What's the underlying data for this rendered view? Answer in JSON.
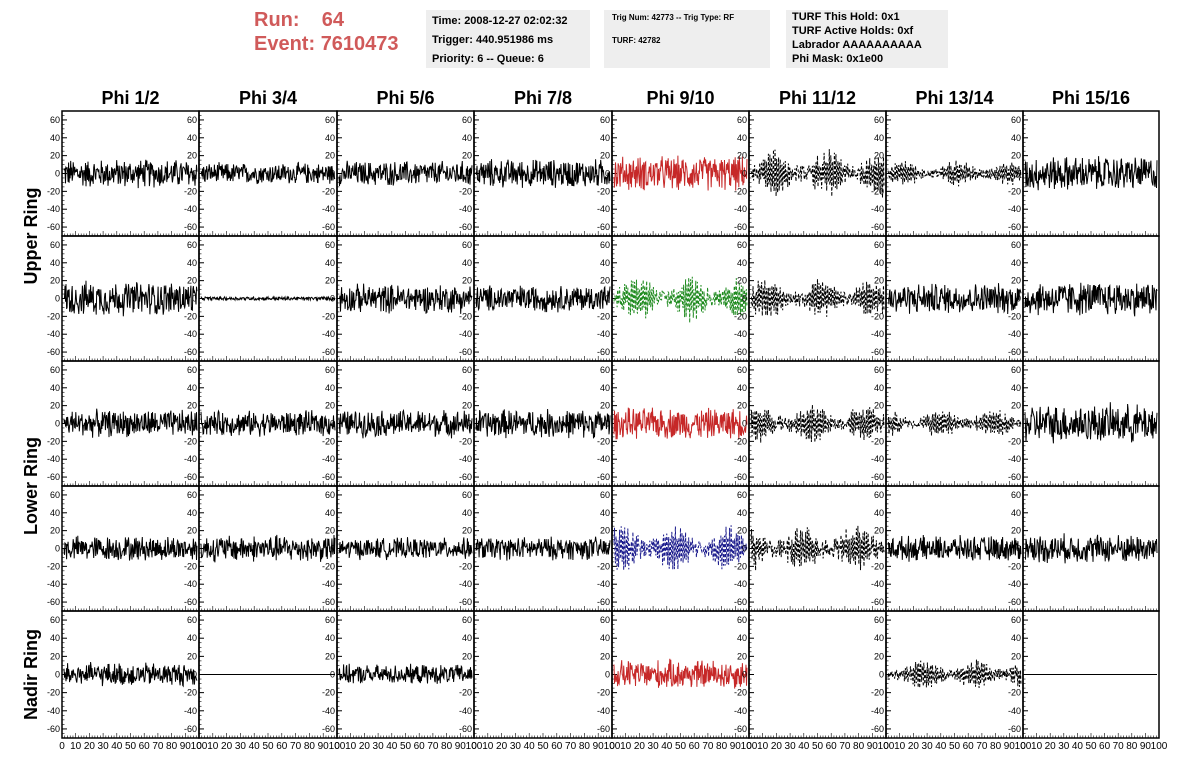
{
  "header": {
    "run_label": "Run:",
    "run_value": "64",
    "event_label": "Event:",
    "event_value": "7610473",
    "time": "Time: 2008-12-27 02:02:32",
    "trigger": "Trigger: 440.951986 ms",
    "priority": "Priority: 6 -- Queue: 6",
    "trig_num": "Trig Num: 42773 -- Trig Type: RF",
    "turf": "TURF: 42782",
    "turf_hold": "TURF This Hold: 0x1",
    "turf_active": "TURF Active Holds: 0xf",
    "labrador": "Labrador AAAAAAAAAA",
    "phi_mask": "Phi Mask: 0x1e00"
  },
  "colors": {
    "red_text": "#d05a5a",
    "trace": "#000000",
    "highlight_red": "#c62828",
    "highlight_green": "#1e8a1e",
    "highlight_blue": "#1a1a8c",
    "info_bg": "#eeeeee"
  },
  "chart_data": {
    "type": "line",
    "column_labels": [
      "Phi 1/2",
      "Phi 3/4",
      "Phi 5/6",
      "Phi 7/8",
      "Phi 9/10",
      "Phi 11/12",
      "Phi 13/14",
      "Phi 15/16"
    ],
    "row_labels": [
      "Upper Ring",
      "Lower Ring",
      "Nadir Ring"
    ],
    "ylim": [
      -70,
      70
    ],
    "y_ticks": [
      -60,
      -40,
      -20,
      0,
      20,
      40,
      60
    ],
    "xlim": [
      0,
      100
    ],
    "x_tick_labels": [
      "0",
      "10",
      "20",
      "30",
      "40",
      "50",
      "60",
      "70",
      "80",
      "90",
      "100"
    ],
    "grid": false,
    "waveforms": [
      {
        "row": 0,
        "col": 0,
        "style": "solid",
        "color": "black",
        "amp": 15
      },
      {
        "row": 0,
        "col": 1,
        "style": "solid",
        "color": "black",
        "amp": 11
      },
      {
        "row": 0,
        "col": 2,
        "style": "solid",
        "color": "black",
        "amp": 13
      },
      {
        "row": 0,
        "col": 3,
        "style": "solid",
        "color": "black",
        "amp": 15
      },
      {
        "row": 0,
        "col": 4,
        "style": "solid",
        "color": "red",
        "amp": 18
      },
      {
        "row": 0,
        "col": 5,
        "style": "dashed",
        "color": "black",
        "amp": 20
      },
      {
        "row": 0,
        "col": 6,
        "style": "dashed",
        "color": "black",
        "amp": 11
      },
      {
        "row": 0,
        "col": 7,
        "style": "solid",
        "color": "black",
        "amp": 18
      },
      {
        "row": 1,
        "col": 0,
        "style": "solid",
        "color": "black",
        "amp": 18
      },
      {
        "row": 1,
        "col": 1,
        "style": "solid",
        "color": "black",
        "amp": 2
      },
      {
        "row": 1,
        "col": 2,
        "style": "solid",
        "color": "black",
        "amp": 15
      },
      {
        "row": 1,
        "col": 3,
        "style": "solid",
        "color": "black",
        "amp": 14
      },
      {
        "row": 1,
        "col": 4,
        "style": "dashed",
        "color": "green",
        "amp": 20
      },
      {
        "row": 1,
        "col": 5,
        "style": "dashed",
        "color": "black",
        "amp": 17
      },
      {
        "row": 1,
        "col": 6,
        "style": "solid",
        "color": "black",
        "amp": 16
      },
      {
        "row": 1,
        "col": 7,
        "style": "solid",
        "color": "black",
        "amp": 18
      },
      {
        "row": 2,
        "col": 0,
        "style": "solid",
        "color": "black",
        "amp": 14
      },
      {
        "row": 2,
        "col": 1,
        "style": "solid",
        "color": "black",
        "amp": 13
      },
      {
        "row": 2,
        "col": 2,
        "style": "solid",
        "color": "black",
        "amp": 14
      },
      {
        "row": 2,
        "col": 3,
        "style": "solid",
        "color": "black",
        "amp": 15
      },
      {
        "row": 2,
        "col": 4,
        "style": "solid",
        "color": "red",
        "amp": 16
      },
      {
        "row": 2,
        "col": 5,
        "style": "dashed",
        "color": "black",
        "amp": 17
      },
      {
        "row": 2,
        "col": 6,
        "style": "dashed",
        "color": "black",
        "amp": 12
      },
      {
        "row": 2,
        "col": 7,
        "style": "solid",
        "color": "black",
        "amp": 20
      },
      {
        "row": 3,
        "col": 0,
        "style": "solid",
        "color": "black",
        "amp": 13
      },
      {
        "row": 3,
        "col": 1,
        "style": "solid",
        "color": "black",
        "amp": 14
      },
      {
        "row": 3,
        "col": 2,
        "style": "solid",
        "color": "black",
        "amp": 11
      },
      {
        "row": 3,
        "col": 3,
        "style": "solid",
        "color": "black",
        "amp": 12
      },
      {
        "row": 3,
        "col": 4,
        "style": "dashed",
        "color": "blue",
        "amp": 20
      },
      {
        "row": 3,
        "col": 5,
        "style": "dashed",
        "color": "black",
        "amp": 20
      },
      {
        "row": 3,
        "col": 6,
        "style": "solid",
        "color": "black",
        "amp": 13
      },
      {
        "row": 3,
        "col": 7,
        "style": "solid",
        "color": "black",
        "amp": 15
      },
      {
        "row": 4,
        "col": 0,
        "style": "solid",
        "color": "black",
        "amp": 12
      },
      {
        "row": 4,
        "col": 1,
        "style": "solid",
        "color": "black",
        "amp": 0
      },
      {
        "row": 4,
        "col": 2,
        "style": "solid",
        "color": "black",
        "amp": 10
      },
      {
        "row": 4,
        "col": 3,
        "style": "none",
        "color": "black",
        "amp": 0
      },
      {
        "row": 4,
        "col": 4,
        "style": "solid",
        "color": "red",
        "amp": 15
      },
      {
        "row": 4,
        "col": 5,
        "style": "none",
        "color": "black",
        "amp": 0
      },
      {
        "row": 4,
        "col": 6,
        "style": "dashed",
        "color": "black",
        "amp": 13
      },
      {
        "row": 4,
        "col": 7,
        "style": "solid",
        "color": "black",
        "amp": 0
      }
    ]
  }
}
